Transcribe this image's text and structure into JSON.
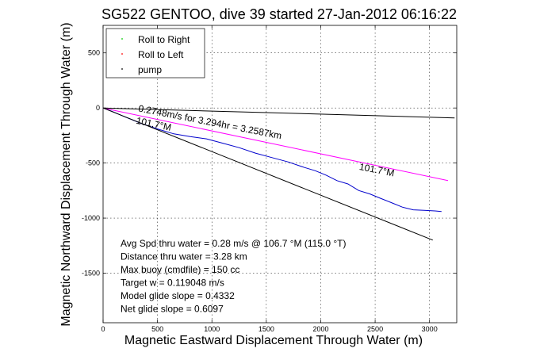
{
  "chart_data": {
    "type": "line",
    "title": "SG522 GENTOO, dive 39 started 27-Jan-2012 06:16:22",
    "xlabel": "Magnetic Eastward Displacement Through Water (m)",
    "ylabel": "Magnetic Northward Displacement Through Water (m)",
    "xlim": [
      0,
      3250
    ],
    "ylim": [
      -1950,
      750
    ],
    "xticks": [
      0,
      500,
      1000,
      1500,
      2000,
      2500,
      3000
    ],
    "yticks": [
      -1500,
      -1000,
      -500,
      0,
      500
    ],
    "grid": true,
    "legend_position": "top-left",
    "legend": [
      {
        "label": "Roll to Right",
        "color": "#00cc00"
      },
      {
        "label": "Roll to Left",
        "color": "#ff0000"
      },
      {
        "label": "pump",
        "color": "#000000"
      }
    ],
    "series": [
      {
        "color": "#0000cc",
        "x": [
          0,
          80,
          200,
          350,
          500,
          650,
          800,
          950,
          1100,
          1250,
          1400,
          1550,
          1700,
          1850,
          1950,
          2050,
          2150,
          2250,
          2350,
          2450,
          2550,
          2650,
          2750,
          2850,
          2950,
          3050,
          3110
        ],
        "y": [
          0,
          -30,
          -80,
          -140,
          -190,
          -235,
          -260,
          -280,
          -320,
          -360,
          -410,
          -450,
          -490,
          -540,
          -570,
          -610,
          -660,
          -690,
          -750,
          -780,
          -820,
          -860,
          -900,
          -925,
          -930,
          -935,
          -940
        ]
      },
      {
        "color": "#ff00ff",
        "x": [
          0,
          3170
        ],
        "y": [
          0,
          -660
        ]
      },
      {
        "color": "#000000",
        "x": [
          0,
          3230
        ],
        "y": [
          0,
          -90
        ]
      },
      {
        "color": "#000000",
        "x": [
          0,
          3030
        ],
        "y": [
          0,
          -1200
        ]
      }
    ],
    "annotations": [
      {
        "text": "0.2748m/s for 3.294hr = 3.2587km",
        "x": 320,
        "y": -30,
        "angle_deg": 11
      },
      {
        "text": "101.7°M",
        "x": 300,
        "y": -140,
        "angle_deg": 12
      },
      {
        "text": "101.7°M",
        "x": 2350,
        "y": -560,
        "angle_deg": 11
      }
    ],
    "stats": [
      "Avg Spd thru water =  0.28 m/s @ 106.7   °M (115.0 °T)",
      "Distance thru water =  3.28 km",
      "Max buoy (cmdfile) = 150 cc",
      "Target w = 0.119048 m/s",
      "Model glide slope = 0.4332",
      "Net glide slope = 0.6097"
    ]
  }
}
